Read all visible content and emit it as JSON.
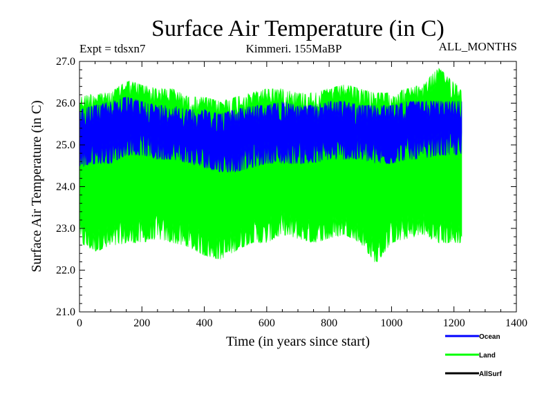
{
  "chart_data": {
    "type": "area",
    "title": "Surface Air Temperature (in C)",
    "subtitle_left": "Expt = tdsxn7",
    "subtitle_center": "Kimmeri. 155MaBP",
    "subtitle_right": "ALL_MONTHS",
    "xlabel": "Time (in years since start)",
    "ylabel": "Surface Air Temperature (in C)",
    "xlim": [
      0,
      1400
    ],
    "ylim": [
      21.0,
      27.0
    ],
    "x_ticks": [
      "0",
      "200",
      "400",
      "600",
      "800",
      "1000",
      "1200",
      "1400"
    ],
    "y_ticks": [
      "21.0",
      "22.0",
      "23.0",
      "24.0",
      "25.0",
      "26.0",
      "27.0"
    ],
    "grid": false,
    "legend_position": "bottom-right",
    "x": [
      0,
      50,
      100,
      150,
      200,
      250,
      300,
      350,
      400,
      450,
      500,
      550,
      600,
      650,
      700,
      750,
      800,
      850,
      900,
      950,
      1000,
      1050,
      1100,
      1150,
      1225
    ],
    "series": [
      {
        "name": "Land",
        "color": "#00ff00",
        "max": [
          26.2,
          26.3,
          26.3,
          26.6,
          26.5,
          26.4,
          26.4,
          26.2,
          26.2,
          26.1,
          26.2,
          26.3,
          26.4,
          26.4,
          26.3,
          26.3,
          26.4,
          26.5,
          26.4,
          26.3,
          26.3,
          26.4,
          26.5,
          26.9,
          26.4
        ],
        "min": [
          22.6,
          22.4,
          22.5,
          22.6,
          22.6,
          22.7,
          22.6,
          22.5,
          22.3,
          22.2,
          22.4,
          22.6,
          22.6,
          22.8,
          22.7,
          22.6,
          22.7,
          22.8,
          22.6,
          22.1,
          22.6,
          22.7,
          22.8,
          22.6,
          22.6
        ]
      },
      {
        "name": "Ocean",
        "color": "#0000ff",
        "max": [
          25.9,
          26.0,
          26.1,
          26.2,
          26.1,
          26.0,
          26.0,
          25.9,
          25.9,
          25.8,
          25.9,
          26.0,
          26.0,
          26.1,
          26.0,
          26.0,
          26.1,
          26.1,
          26.0,
          26.0,
          26.0,
          26.1,
          26.1,
          26.1,
          26.1
        ],
        "min": [
          24.4,
          24.5,
          24.5,
          24.7,
          24.7,
          24.6,
          24.6,
          24.5,
          24.4,
          24.3,
          24.3,
          24.4,
          24.5,
          24.5,
          24.5,
          24.5,
          24.6,
          24.6,
          24.6,
          24.5,
          24.5,
          24.6,
          24.6,
          24.7,
          24.7
        ]
      },
      {
        "name": "AllSurf",
        "color": "#000000",
        "max": [],
        "min": []
      }
    ],
    "legend": [
      {
        "label": "Ocean",
        "color": "#0000ff"
      },
      {
        "label": "Land",
        "color": "#00ff00"
      },
      {
        "label": "AllSurf",
        "color": "#000000"
      }
    ]
  }
}
